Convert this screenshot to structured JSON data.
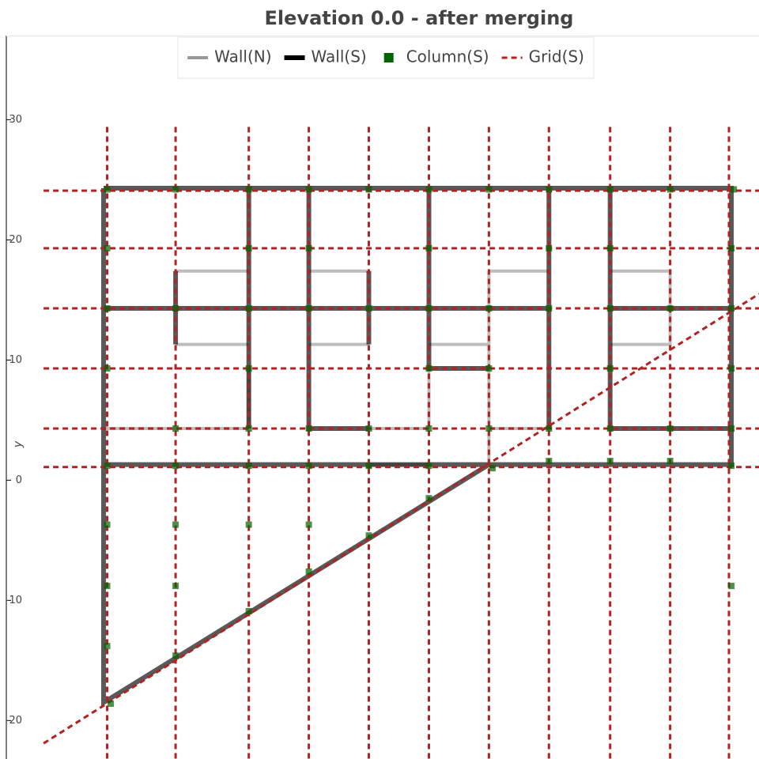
{
  "chart_data": {
    "type": "plan",
    "title": "Elevation 0.0 - after merging",
    "y_label": "y",
    "xlim": [
      -8.4,
      54.3
    ],
    "ylim": [
      -23.2,
      37
    ],
    "yticks": [
      30,
      20,
      10,
      0,
      -10,
      -20
    ],
    "legend": "top_center",
    "series": [
      {
        "name": "Wall(N)",
        "kind": "line",
        "color": "#999999",
        "width": 4,
        "dash": false,
        "x": [
          5.7,
          11.8,
          null,
          16.8,
          21.8,
          null,
          31.8,
          36.8,
          null,
          41.9,
          46.9,
          46.9,
          41.9,
          null,
          5.7,
          11.8,
          null,
          16.8,
          21.8,
          null,
          26.8,
          31.8,
          null,
          -0.3,
          11.8,
          null,
          21.8,
          26.8,
          null,
          31.8,
          36.8,
          null,
          31.8,
          31.8,
          null,
          26.8,
          26.8,
          null,
          11.8,
          11.8,
          null,
          21.8,
          26.8
        ],
        "y": [
          17.4,
          17.4,
          null,
          17.4,
          17.4,
          null,
          17.4,
          17.4,
          null,
          17.4,
          17.4,
          11.3,
          11.3,
          null,
          11.3,
          11.3,
          null,
          11.3,
          11.3,
          null,
          11.3,
          11.3,
          null,
          4.3,
          4.3,
          null,
          4.3,
          4.3,
          null,
          4.3,
          4.3,
          null,
          17.4,
          1.3,
          null,
          9.3,
          4.3,
          null,
          9.3,
          4.3,
          null,
          1.3,
          1.3
        ]
      },
      {
        "name": "Wall(S)",
        "kind": "line",
        "color": "#000000",
        "width": 6,
        "dash": false,
        "x": [
          -0.3,
          52,
          52,
          -0.3,
          null,
          -0.3,
          -0.3,
          31.8,
          null,
          -0.3,
          36.8,
          null,
          41.9,
          52,
          null,
          5.7,
          5.7,
          null,
          11.8,
          11.8,
          null,
          16.8,
          16.8,
          21.8,
          null,
          21.8,
          21.8,
          null,
          26.8,
          26.8,
          31.8,
          null,
          36.8,
          36.8,
          null,
          41.9,
          41.9,
          52
        ],
        "y": [
          24.3,
          24.3,
          1.3,
          1.3,
          null,
          24.3,
          -18.5,
          1.3,
          null,
          14.3,
          14.3,
          null,
          14.3,
          14.3,
          null,
          17.4,
          11.3,
          null,
          24.3,
          4.3,
          null,
          24.3,
          4.3,
          4.3,
          null,
          17.4,
          11.3,
          null,
          24.3,
          9.3,
          9.3,
          null,
          24.3,
          4.3,
          null,
          24.3,
          4.3,
          4.3
        ]
      },
      {
        "name": "Column(S)",
        "kind": "point",
        "color": "#006400",
        "x": [
          0,
          5.7,
          11.8,
          16.8,
          21.8,
          26.8,
          31.8,
          36.8,
          41.9,
          46.9,
          52.2,
          0,
          11.8,
          16.8,
          26.8,
          36.8,
          41.9,
          52,
          0,
          5.7,
          11.8,
          16.8,
          21.8,
          26.8,
          31.8,
          36.8,
          41.9,
          46.9,
          52,
          0,
          11.8,
          26.8,
          31.8,
          41.9,
          52,
          5.7,
          11.8,
          16.8,
          21.8,
          26.8,
          31.8,
          36.8,
          41.9,
          46.9,
          52,
          0,
          5.7,
          11.8,
          16.8,
          21.8,
          26.8,
          32.1,
          36.8,
          41.9,
          46.9,
          52,
          0,
          5.7,
          11.8,
          16.8,
          0,
          5.7,
          52,
          0,
          0.3,
          5.7,
          11.8,
          16.8,
          21.8,
          26.8
        ],
        "y": [
          24.2,
          24.2,
          24.2,
          24.2,
          24.2,
          24.2,
          24.2,
          24.2,
          24.2,
          24.2,
          24.2,
          19.3,
          19.3,
          19.3,
          19.3,
          19.3,
          19.3,
          19.3,
          14.3,
          14.3,
          14.3,
          14.3,
          14.3,
          14.3,
          14.3,
          14.3,
          14.3,
          14.3,
          14.3,
          9.3,
          9.3,
          9.3,
          9.3,
          9.3,
          9.3,
          4.3,
          4.3,
          4.3,
          4.3,
          4.3,
          4.3,
          4.3,
          4.3,
          4.3,
          4.3,
          1.2,
          1.2,
          1.2,
          1.2,
          1.2,
          1.2,
          1.0,
          1.6,
          1.6,
          1.6,
          1.2,
          -3.7,
          -3.7,
          -3.7,
          -3.7,
          -8.8,
          -8.8,
          -8.8,
          -13.8,
          -18.6,
          -14.6,
          -10.9,
          -7.6,
          -4.6,
          -1.5
        ]
      },
      {
        "name": "Grid(S)",
        "kind": "line",
        "color": "#b22222",
        "width": 3,
        "dash": true,
        "x": [
          0,
          0,
          null,
          5.7,
          5.7,
          null,
          11.8,
          11.8,
          null,
          16.8,
          16.8,
          null,
          21.8,
          21.8,
          null,
          26.8,
          26.8,
          null,
          31.8,
          31.8,
          null,
          36.8,
          36.8,
          null,
          41.9,
          41.9,
          null,
          46.9,
          46.9,
          null,
          51.8,
          51.8,
          null,
          -5.3,
          54.3,
          null,
          -5.3,
          54.3,
          null,
          -5.3,
          54.3,
          null,
          -5.3,
          54.3,
          null,
          -5.3,
          54.3,
          null,
          -5.3,
          54.3,
          null,
          -5.3,
          54.3
        ],
        "y": [
          29.4,
          -23.2,
          null,
          29.4,
          -23.2,
          null,
          29.4,
          -23.2,
          null,
          29.4,
          -23.2,
          null,
          29.4,
          -23.2,
          null,
          29.4,
          -23.2,
          null,
          29.4,
          -23.2,
          null,
          29.4,
          -23.2,
          null,
          29.4,
          -23.2,
          null,
          29.4,
          -23.2,
          null,
          29.4,
          -23.2,
          null,
          24.1,
          24.1,
          null,
          19.3,
          19.3,
          null,
          14.3,
          14.3,
          null,
          9.3,
          9.3,
          null,
          4.3,
          4.3,
          null,
          1.1,
          1.1,
          null,
          -21.9,
          15.5
        ]
      }
    ]
  }
}
